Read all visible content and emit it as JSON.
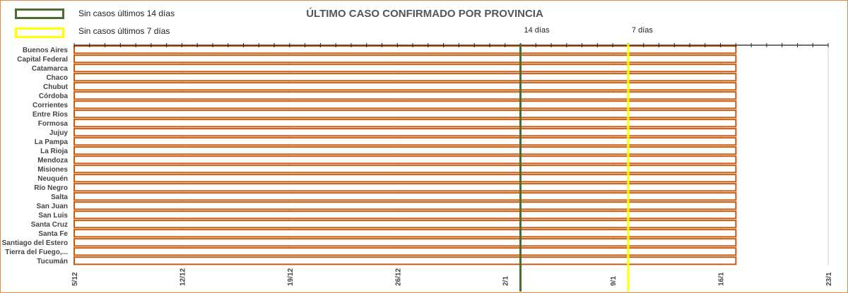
{
  "legend": {
    "items": [
      {
        "label": "Sin casos últimos 14 días",
        "color": "#4a6e2c"
      },
      {
        "label": "Sin casos últimos 7 días",
        "color": "#ffff00"
      }
    ]
  },
  "chart_data": {
    "type": "bar",
    "title": "ÚLTIMO CASO CONFIRMADO POR PROVINCIA",
    "xlabel": "",
    "ylabel": "",
    "categories": [
      "Buenos Aires",
      "Capital Federal",
      "Catamarca",
      "Chaco",
      "Chubut",
      "Córdoba",
      "Corrientes",
      "Entre Ríos",
      "Formosa",
      "Jujuy",
      "La Pampa",
      "La Rioja",
      "Mendoza",
      "Misiones",
      "Neuquén",
      "Río Negro",
      "Salta",
      "San Juan",
      "San Luis",
      "Santa Cruz",
      "Santa Fe",
      "Santiago del Estero",
      "Tierra del Fuego,...",
      "Tucumán"
    ],
    "x_type": "date",
    "xlim": [
      "2020-12-05",
      "2021-01-23"
    ],
    "x_ticks": [
      "5/12",
      "12/12",
      "19/12",
      "26/12",
      "2/1",
      "9/1",
      "16/1",
      "23/1"
    ],
    "x_tick_dates": [
      "2020-12-05",
      "2020-12-12",
      "2020-12-19",
      "2020-12-26",
      "2021-01-02",
      "2021-01-09",
      "2021-01-16",
      "2021-01-23"
    ],
    "bar_start": "2020-12-05",
    "values": [
      "2021-01-17",
      "2021-01-17",
      "2021-01-17",
      "2021-01-17",
      "2021-01-17",
      "2021-01-17",
      "2021-01-17",
      "2021-01-17",
      "2021-01-17",
      "2021-01-17",
      "2021-01-17",
      "2021-01-17",
      "2021-01-17",
      "2021-01-17",
      "2021-01-17",
      "2021-01-17",
      "2021-01-17",
      "2021-01-17",
      "2021-01-17",
      "2021-01-17",
      "2021-01-17",
      "2021-01-17",
      "2021-01-17",
      "2021-01-17"
    ],
    "bar_color": "#c55a11",
    "grid": true,
    "reference_lines": [
      {
        "label": "14 días",
        "date": "2021-01-03",
        "color": "#4a6e2c"
      },
      {
        "label": "7 días",
        "date": "2021-01-10",
        "color": "#ffff00"
      }
    ]
  }
}
